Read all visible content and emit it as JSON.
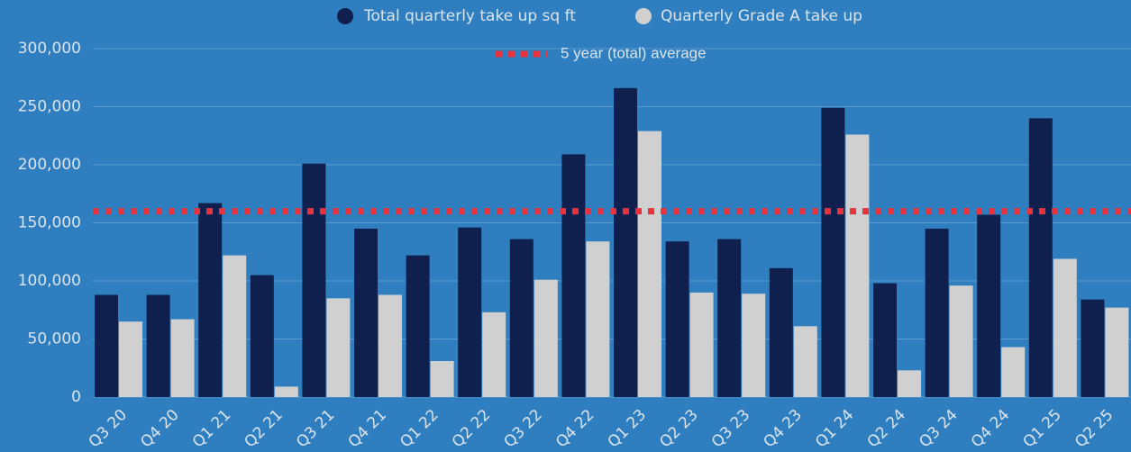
{
  "chart_data": {
    "type": "bar",
    "categories": [
      "Q3 20",
      "Q4 20",
      "Q1 21",
      "Q2 21",
      "Q3 21",
      "Q4 21",
      "Q1 22",
      "Q2 22",
      "Q3 22",
      "Q4 22",
      "Q1 23",
      "Q2 23",
      "Q3 23",
      "Q4 23",
      "Q1 24",
      "Q2 24",
      "Q3 24",
      "Q4 24",
      "Q1 25",
      "Q2 25"
    ],
    "series": [
      {
        "name": "Total quarterly take up sq ft",
        "color": "#0f1f4e",
        "values": [
          88000,
          88000,
          167000,
          105000,
          201000,
          145000,
          122000,
          146000,
          136000,
          209000,
          266000,
          134000,
          136000,
          111000,
          249000,
          98000,
          145000,
          157000,
          240000,
          84000
        ]
      },
      {
        "name": "Quarterly Grade A take up",
        "color": "#d0d0d0",
        "values": [
          65000,
          67000,
          122000,
          9000,
          85000,
          88000,
          31000,
          73000,
          101000,
          134000,
          229000,
          90000,
          89000,
          61000,
          226000,
          23000,
          96000,
          43000,
          119000,
          77000
        ]
      }
    ],
    "average": {
      "name": "5 year (total) average",
      "value": 160000,
      "color": "#e8323c"
    },
    "ylim": [
      0,
      300000
    ],
    "yticks": [
      0,
      {
        "value": 50000,
        "label": "50,000"
      },
      {
        "value": 100000,
        "label": "100,000"
      },
      {
        "value": 150000,
        "label": "150,000"
      },
      {
        "value": 200000,
        "label": "200,000"
      },
      {
        "value": 250000,
        "label": "250,000"
      },
      {
        "value": 300000,
        "label": "300,000"
      }
    ],
    "grid": true
  }
}
